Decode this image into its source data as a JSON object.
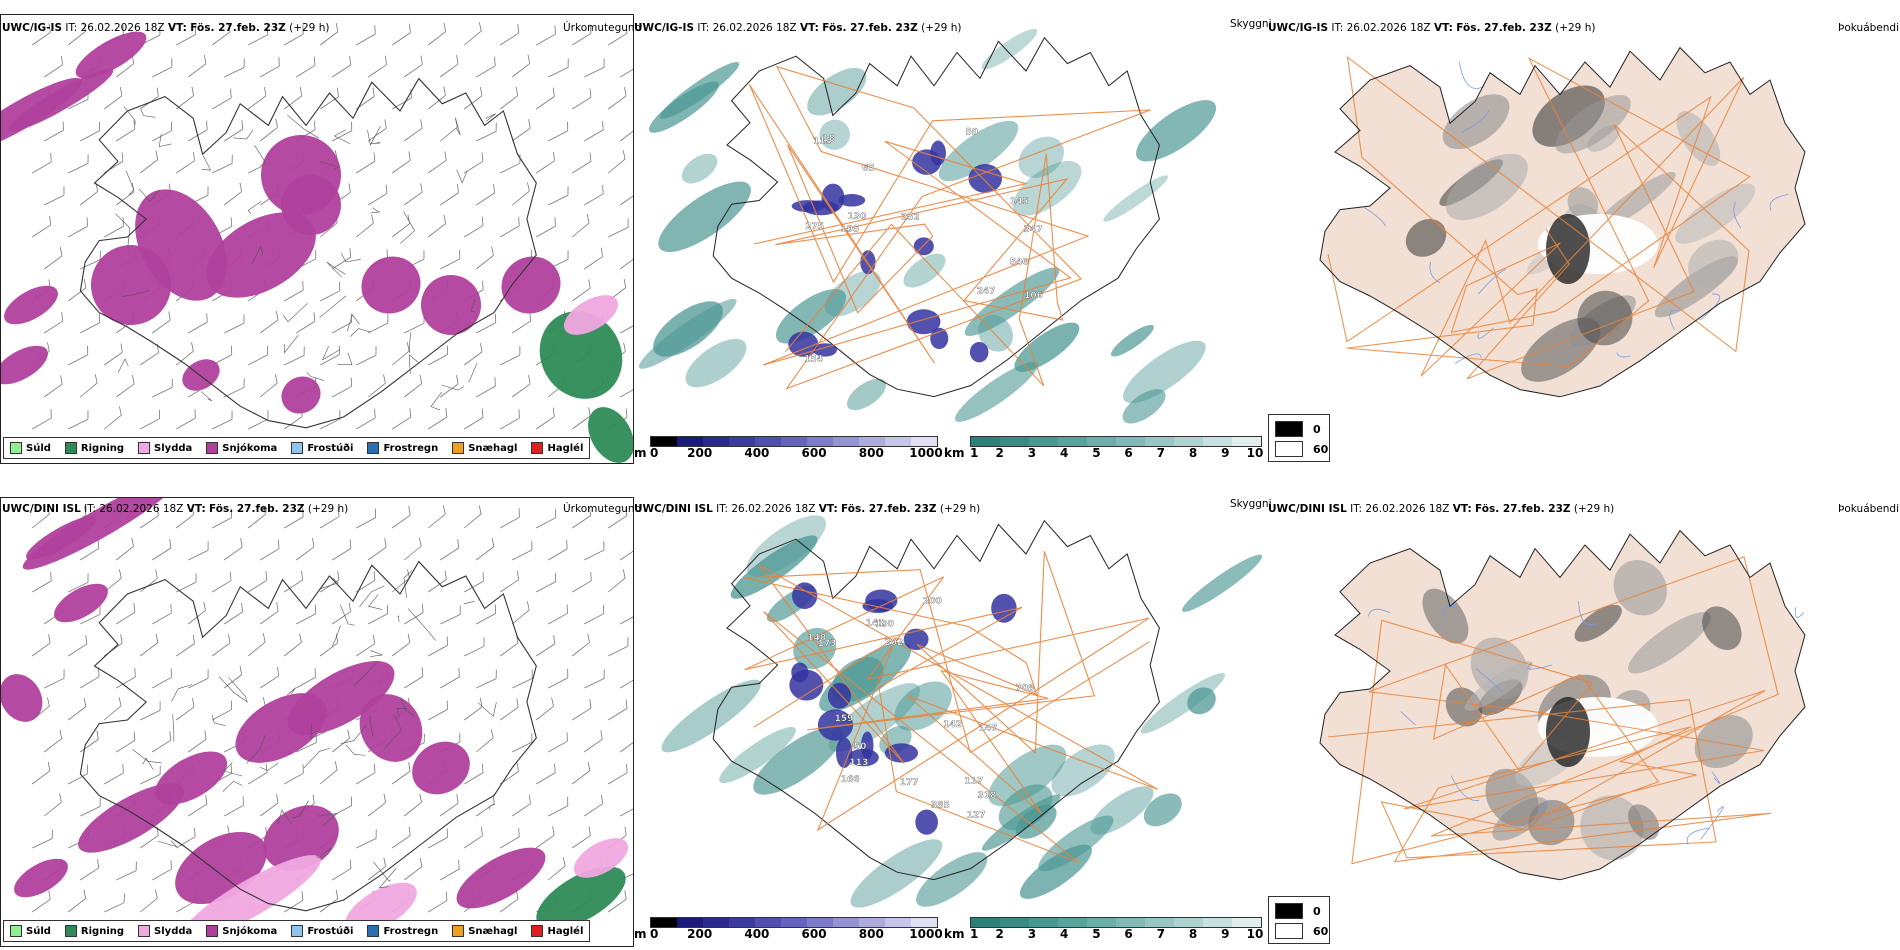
{
  "rows": [
    {
      "id": "top",
      "model": "UWC/IG-IS",
      "it_label": "IT:",
      "it_value": "26.02.2026 18Z",
      "vt_label": "VT:",
      "vt_value": "Fös. 27.feb. 23Z",
      "lead": "(+29 h)",
      "peak_labels": [
        "275",
        "247",
        "252",
        "347",
        "65",
        "106",
        "145",
        "130",
        "115",
        "195",
        "540",
        "154",
        "18",
        "50"
      ]
    },
    {
      "id": "bottom",
      "model": "UWC/DINI ISL",
      "it_label": "IT:",
      "it_value": "26.02.2026 18Z",
      "vt_label": "VT:",
      "vt_value": "Fös. 27.feb. 23Z",
      "lead": "(+29 h)",
      "peak_labels": [
        "141",
        "318",
        "708",
        "385",
        "200",
        "113",
        "142",
        "166",
        "159",
        "147",
        "148",
        "173",
        "202",
        "177",
        "190",
        "127",
        "117",
        "50"
      ]
    }
  ],
  "panel_titles": {
    "precip": "Úrkomutegund",
    "visibility": "Skyggni",
    "fog": "Þokuábendi"
  },
  "precip_legend": [
    {
      "label": "Súld",
      "color": "#90ee90"
    },
    {
      "label": "Rigning",
      "color": "#2e8b57"
    },
    {
      "label": "Slydda",
      "color": "#f0a8e0"
    },
    {
      "label": "Snjókoma",
      "color": "#b0409c"
    },
    {
      "label": "Frostúði",
      "color": "#8ec4ee"
    },
    {
      "label": "Frostregn",
      "color": "#2a6fb0"
    },
    {
      "label": "Snæhagl",
      "color": "#f0a020"
    },
    {
      "label": "Haglél",
      "color": "#e02020"
    }
  ],
  "vis_colorbar_m": {
    "unit": "m",
    "ticks": [
      "0",
      "200",
      "400",
      "600",
      "800",
      "1000"
    ],
    "colors": [
      "#000000",
      "#1a1a7a",
      "#2a2a8c",
      "#3b3b9e",
      "#4f4fae",
      "#6464be",
      "#7c7cc8",
      "#9494d4",
      "#acacde",
      "#c6c6ea",
      "#e0e0f5"
    ]
  },
  "vis_colorbar_km": {
    "unit": "km",
    "ticks": [
      "1",
      "2",
      "3",
      "4",
      "5",
      "6",
      "7",
      "8",
      "9",
      "10"
    ],
    "colors": [
      "#2e7e7a",
      "#3b8a86",
      "#4a9692",
      "#5aa29e",
      "#6caeab",
      "#80bab8",
      "#96c7c5",
      "#aed4d2",
      "#c6e1e0",
      "#e0efee"
    ]
  },
  "fog_legend": [
    {
      "label": "0",
      "color": "#000000"
    },
    {
      "label": "60",
      "color": "#ffffff"
    }
  ],
  "colors": {
    "snow": "#b0409c",
    "sleet": "#f0a8e0",
    "rain": "#2e8b57",
    "vis_teal": "#4a9692",
    "vis_blue": "#3434a0",
    "land": "#f2e0d4",
    "road": "#e8823a",
    "river": "#7a9ae8"
  }
}
